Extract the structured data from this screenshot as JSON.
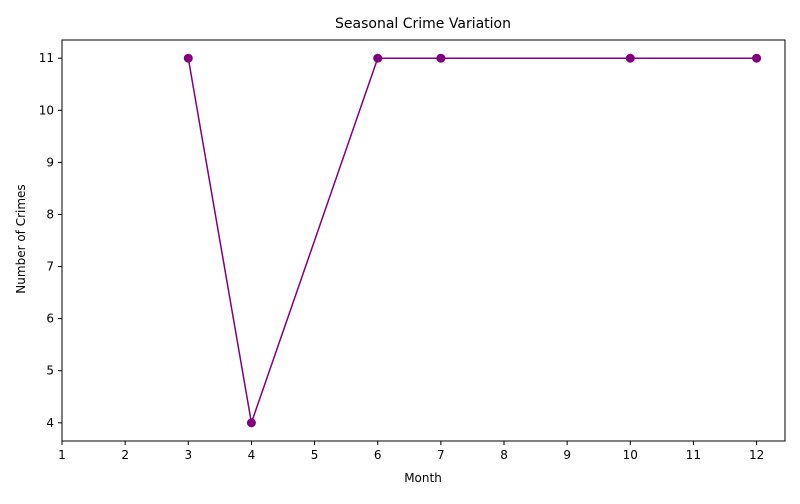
{
  "chart_data": {
    "type": "line",
    "title": "Seasonal Crime Variation",
    "xlabel": "Month",
    "ylabel": "Number of Crimes",
    "x": [
      3,
      4,
      6,
      7,
      10,
      12
    ],
    "series": [
      {
        "values": [
          11,
          4,
          11,
          11,
          11,
          11
        ],
        "color": "#800080",
        "marker": "circle"
      }
    ],
    "xticks": [
      1,
      2,
      3,
      4,
      5,
      6,
      7,
      8,
      9,
      10,
      11,
      12
    ],
    "yticks": [
      4,
      5,
      6,
      7,
      8,
      9,
      10,
      11
    ],
    "xlim": [
      1,
      12.45
    ],
    "ylim": [
      3.65,
      11.35
    ],
    "grid": false
  }
}
